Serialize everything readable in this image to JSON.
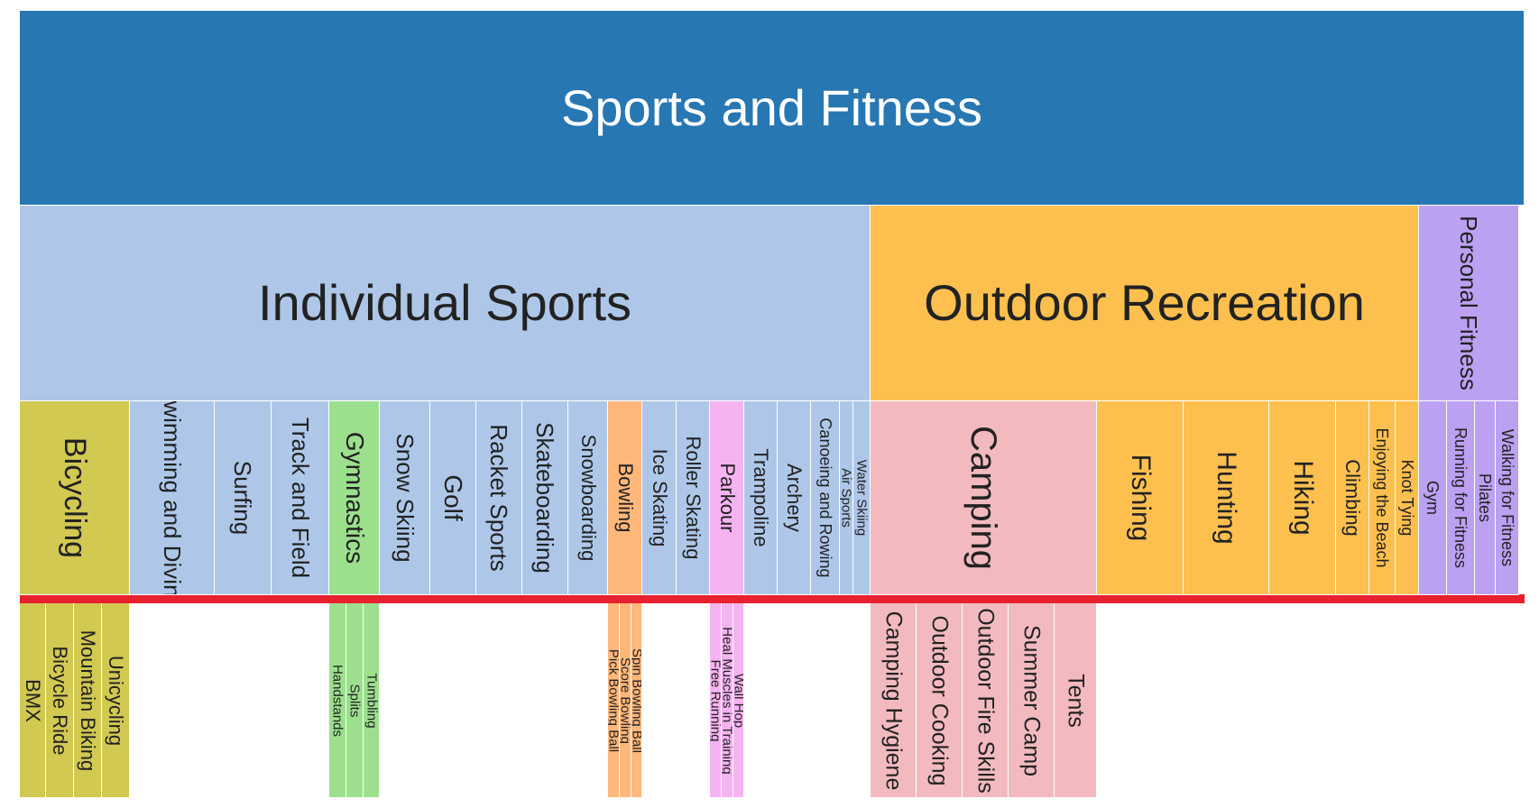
{
  "colors": {
    "root": "#2777b3",
    "individual": "#aec7e8",
    "outdoor": "#fdc04f",
    "personal": "#bca0f2",
    "bicycling": "#d1c952",
    "gymnastics": "#9ce08e",
    "bowling": "#ffb77a",
    "parkour": "#f6b3f2",
    "camping": "#f2babf",
    "cutline": "#e8212f"
  },
  "chart_data": {
    "type": "icicle",
    "name": "Sports and Fitness",
    "children": [
      {
        "name": "Individual Sports",
        "children": [
          {
            "name": "Bicycling",
            "children": [
              {
                "name": "BMX"
              },
              {
                "name": "Bicycle Ride"
              },
              {
                "name": "Mountain Biking"
              },
              {
                "name": "Unicycling"
              }
            ]
          },
          {
            "name": "Swimming and Diving"
          },
          {
            "name": "Surfing"
          },
          {
            "name": "Track and Field"
          },
          {
            "name": "Gymnastics",
            "children": [
              {
                "name": "Handstands"
              },
              {
                "name": "Splits"
              },
              {
                "name": "Tumbling"
              }
            ]
          },
          {
            "name": "Snow Skiing"
          },
          {
            "name": "Golf"
          },
          {
            "name": "Racket Sports"
          },
          {
            "name": "Skateboarding"
          },
          {
            "name": "Snowboarding"
          },
          {
            "name": "Bowling",
            "children": [
              {
                "name": "Pick Bowling Ball"
              },
              {
                "name": "Score Bowling"
              },
              {
                "name": "Spin Bowling Ball"
              }
            ]
          },
          {
            "name": "Ice Skating"
          },
          {
            "name": "Roller Skating"
          },
          {
            "name": "Parkour",
            "children": [
              {
                "name": "Free Running"
              },
              {
                "name": "Heal Muscles in Training"
              },
              {
                "name": "Wall Hop"
              }
            ]
          },
          {
            "name": "Trampoline"
          },
          {
            "name": "Archery"
          },
          {
            "name": "Canoeing and Rowing"
          },
          {
            "name": "Air Sports"
          },
          {
            "name": "Water Skiing"
          }
        ]
      },
      {
        "name": "Outdoor Recreation",
        "children": [
          {
            "name": "Camping",
            "children": [
              {
                "name": "Camping Hygiene"
              },
              {
                "name": "Outdoor Cooking"
              },
              {
                "name": "Outdoor Fire Skills"
              },
              {
                "name": "Summer Camp"
              },
              {
                "name": "Tents"
              }
            ]
          },
          {
            "name": "Fishing"
          },
          {
            "name": "Hunting"
          },
          {
            "name": "Hiking"
          },
          {
            "name": "Climbing"
          },
          {
            "name": "Enjoying the Beach"
          },
          {
            "name": "Knot Tying"
          }
        ]
      },
      {
        "name": "Personal Fitness",
        "children": [
          {
            "name": "Gym"
          },
          {
            "name": "Running for Fitness"
          },
          {
            "name": "Pilates"
          },
          {
            "name": "Walking for Fitness"
          }
        ]
      }
    ]
  }
}
